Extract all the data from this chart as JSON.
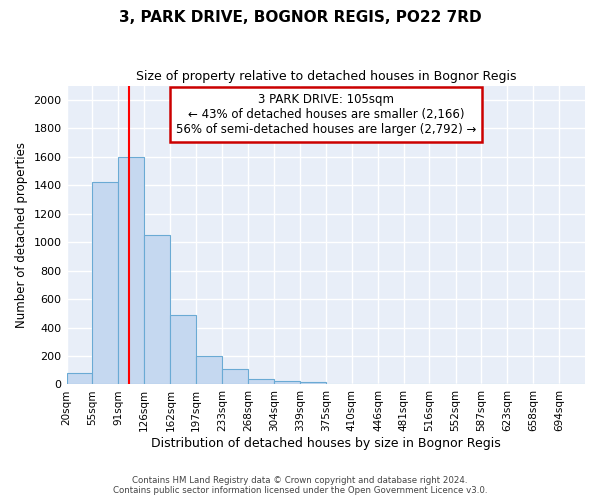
{
  "title1": "3, PARK DRIVE, BOGNOR REGIS, PO22 7RD",
  "title2": "Size of property relative to detached houses in Bognor Regis",
  "xlabel": "Distribution of detached houses by size in Bognor Regis",
  "ylabel": "Number of detached properties",
  "bin_edges": [
    20,
    55,
    91,
    126,
    162,
    197,
    233,
    268,
    304,
    339,
    375,
    410,
    446,
    481,
    516,
    552,
    587,
    623,
    658,
    694,
    729
  ],
  "bar_heights": [
    80,
    1420,
    1600,
    1050,
    490,
    200,
    110,
    35,
    25,
    20,
    0,
    0,
    0,
    0,
    0,
    0,
    0,
    0,
    0,
    0
  ],
  "bar_color": "#c5d8f0",
  "bar_edge_color": "#6aaad4",
  "bar_edge_width": 0.8,
  "red_line_x": 105,
  "red_line_color": "#ff0000",
  "annotation_text": "3 PARK DRIVE: 105sqm\n← 43% of detached houses are smaller (2,166)\n56% of semi-detached houses are larger (2,792) →",
  "annotation_box_color": "#ffffff",
  "annotation_box_edge_color": "#cc0000",
  "ylim": [
    0,
    2100
  ],
  "yticks": [
    0,
    200,
    400,
    600,
    800,
    1000,
    1200,
    1400,
    1600,
    1800,
    2000
  ],
  "background_color": "#e8eef8",
  "grid_color": "#ffffff",
  "footer_line1": "Contains HM Land Registry data © Crown copyright and database right 2024.",
  "footer_line2": "Contains public sector information licensed under the Open Government Licence v3.0."
}
